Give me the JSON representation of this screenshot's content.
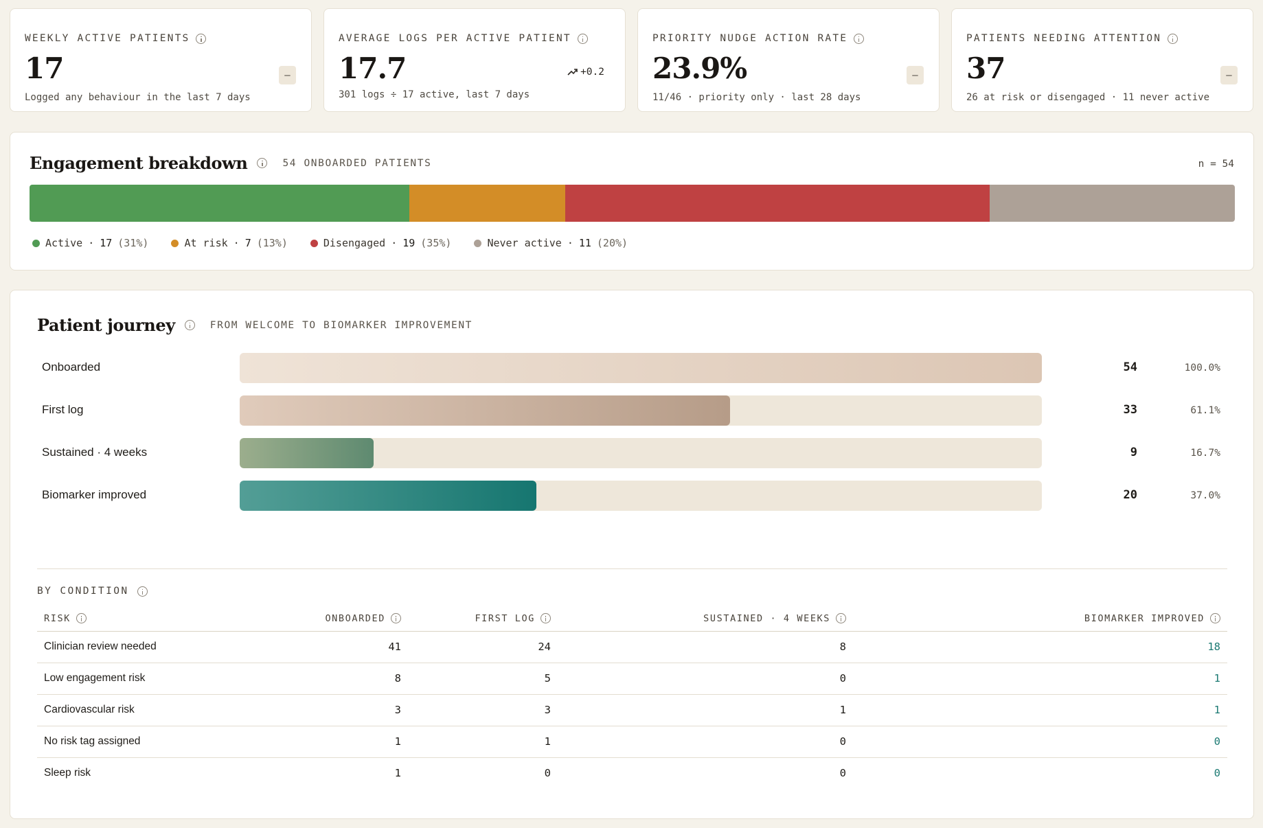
{
  "kpis": [
    {
      "label": "WEEKLY ACTIVE PATIENTS",
      "value": "17",
      "sub": "Logged any behaviour in the last 7 days",
      "badge": "–"
    },
    {
      "label": "AVERAGE LOGS PER ACTIVE PATIENT",
      "value": "17.7",
      "sub": "301 logs ÷ 17 active, last 7 days",
      "trend": "+0.2"
    },
    {
      "label": "PRIORITY NUDGE ACTION RATE",
      "value": "23.9%",
      "sub": "11/46 · priority only · last 28 days",
      "badge": "–"
    },
    {
      "label": "PATIENTS NEEDING ATTENTION",
      "value": "37",
      "sub": "26 at risk or disengaged · 11 never active",
      "badge": "–"
    }
  ],
  "engagement": {
    "title": "Engagement breakdown",
    "caption": "54 ONBOARDED PATIENTS",
    "n_label": "n = 54",
    "segments": [
      {
        "name": "Active",
        "count": "17",
        "pct": "(31%)",
        "value": 17,
        "color": "#519b54"
      },
      {
        "name": "At risk",
        "count": "7",
        "pct": "(13%)",
        "value": 7,
        "color": "#d38d27"
      },
      {
        "name": "Disengaged",
        "count": "19",
        "pct": "(35%)",
        "value": 19,
        "color": "#bf4142"
      },
      {
        "name": "Never active",
        "count": "11",
        "pct": "(20%)",
        "value": 11,
        "color": "#ada197"
      }
    ]
  },
  "journey": {
    "title": "Patient journey",
    "caption": "FROM WELCOME TO BIOMARKER IMPROVEMENT",
    "stages": [
      {
        "label": "Onboarded",
        "count": "54",
        "pct": "100.0%",
        "fraction": 1.0,
        "grad_from": "#efe3d7",
        "grad_to": "#dcc6b4"
      },
      {
        "label": "First log",
        "count": "33",
        "pct": "61.1%",
        "fraction": 0.611,
        "grad_from": "#e0cbbb",
        "grad_to": "#b69c88"
      },
      {
        "label": "Sustained · 4 weeks",
        "count": "9",
        "pct": "16.7%",
        "fraction": 0.167,
        "grad_from": "#9cae8d",
        "grad_to": "#5e8a70"
      },
      {
        "label": "Biomarker improved",
        "count": "20",
        "pct": "37.0%",
        "fraction": 0.37,
        "grad_from": "#539e96",
        "grad_to": "#167670"
      }
    ],
    "by_condition_label": "BY CONDITION",
    "table": {
      "headers": [
        "RISK",
        "ONBOARDED",
        "FIRST LOG",
        "SUSTAINED · 4 WEEKS",
        "BIOMARKER IMPROVED"
      ],
      "rows": [
        [
          "Clinician review needed",
          "41",
          "24",
          "8",
          "18"
        ],
        [
          "Low engagement risk",
          "8",
          "5",
          "0",
          "1"
        ],
        [
          "Cardiovascular risk",
          "3",
          "3",
          "1",
          "1"
        ],
        [
          "No risk tag assigned",
          "1",
          "1",
          "0",
          "0"
        ],
        [
          "Sleep risk",
          "1",
          "0",
          "0",
          "0"
        ]
      ]
    }
  }
}
